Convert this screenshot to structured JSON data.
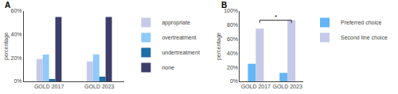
{
  "chart_data": [
    {
      "type": "bar",
      "title": "A",
      "categories": [
        "GOLD 2017",
        "GOLD 2023"
      ],
      "series": [
        {
          "name": "appropriate",
          "color": "#c5cae9",
          "values": [
            19,
            17
          ]
        },
        {
          "name": "overtreatment",
          "color": "#90caf9",
          "values": [
            23,
            23
          ]
        },
        {
          "name": "undertreatment",
          "color": "#1e6ea8",
          "values": [
            2,
            4
          ]
        },
        {
          "name": "none",
          "color": "#3d3d6b",
          "values": [
            55,
            55
          ]
        }
      ],
      "ylabel": "percentage",
      "ylim": [
        0,
        60
      ],
      "yticks": [
        {
          "value": 0,
          "label": "0%"
        },
        {
          "value": 20,
          "label": "20%"
        },
        {
          "value": 40,
          "label": "40%"
        },
        {
          "value": 60,
          "label": "60%"
        }
      ],
      "grid": false,
      "legend": "right"
    },
    {
      "type": "bar",
      "title": "B",
      "categories": [
        "GOLD 2017",
        "GOLD 2023"
      ],
      "series": [
        {
          "name": "Preferred choice",
          "color": "#64b5f6",
          "values": [
            25,
            12
          ]
        },
        {
          "name": "Second line choice",
          "color": "#c5cae9",
          "values": [
            75,
            87
          ]
        }
      ],
      "ylabel": "percentage",
      "ylim": [
        0,
        100
      ],
      "yticks": [
        {
          "value": 0,
          "label": "0%"
        },
        {
          "value": 20,
          "label": "20%"
        },
        {
          "value": 40,
          "label": "40%"
        },
        {
          "value": 60,
          "label": "60%"
        },
        {
          "value": 80,
          "label": "80%"
        },
        {
          "value": 100,
          "label": "100%"
        }
      ],
      "grid": false,
      "legend": "right",
      "annotations": [
        {
          "text": "*",
          "between": [
            "GOLD 2017",
            "GOLD 2023"
          ],
          "series": "Second line choice",
          "y": [
            83,
            87
          ]
        }
      ]
    }
  ]
}
